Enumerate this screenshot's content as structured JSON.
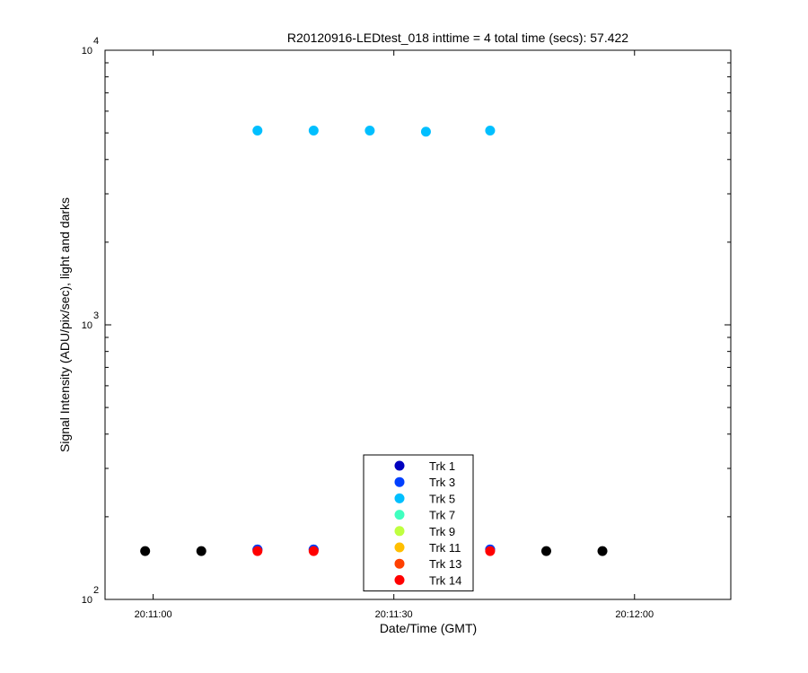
{
  "chart_data": {
    "type": "scatter",
    "title": "R20120916-LEDtest_018 inttime = 4 total time (secs): 57.422",
    "xlabel": "Date/Time (GMT)",
    "ylabel": "Signal Intensity (ADU/pix/sec), light and darks",
    "x_axis": {
      "type": "time",
      "min": "20:10:54",
      "max": "20:12:12",
      "ticks": [
        "20:11:00",
        "20:11:30",
        "20:12:00"
      ]
    },
    "y_axis": {
      "scale": "log",
      "min": 100,
      "max": 10000,
      "ticks": [
        {
          "value": 100,
          "base": "10",
          "exp": "2"
        },
        {
          "value": 1000,
          "base": "10",
          "exp": "3"
        },
        {
          "value": 10000,
          "base": "10",
          "exp": "4"
        }
      ]
    },
    "grid": false,
    "legend": {
      "placement": "bottom-center",
      "entries": [
        {
          "name": "Trk 1",
          "color": "#0000BF"
        },
        {
          "name": "Trk 3",
          "color": "#0040FF"
        },
        {
          "name": "Trk 5",
          "color": "#00BFFF"
        },
        {
          "name": "Trk 7",
          "color": "#40FFBF"
        },
        {
          "name": "Trk 9",
          "color": "#BFFF40"
        },
        {
          "name": "Trk 11",
          "color": "#FFBF00"
        },
        {
          "name": "Trk 13",
          "color": "#FF4000"
        },
        {
          "name": "Trk 14",
          "color": "#FF0000"
        }
      ]
    },
    "series": [
      {
        "name": "Trk 1",
        "color": "#0000BF",
        "x": [
          "20:11:13",
          "20:11:20",
          "20:11:42"
        ],
        "y": [
          152,
          152,
          152
        ]
      },
      {
        "name": "Trk 3",
        "color": "#0040FF",
        "x": [
          "20:11:13",
          "20:11:20",
          "20:11:42"
        ],
        "y": [
          152,
          152,
          152
        ]
      },
      {
        "name": "Trk 5",
        "color": "#00BFFF",
        "x": [
          "20:11:13",
          "20:11:20",
          "20:11:27",
          "20:11:34",
          "20:11:42"
        ],
        "y": [
          5100,
          5100,
          5100,
          5050,
          5100
        ]
      },
      {
        "name": "Trk 7",
        "color": "#40FFBF",
        "x": [],
        "y": []
      },
      {
        "name": "Trk 9",
        "color": "#BFFF40",
        "x": [],
        "y": []
      },
      {
        "name": "Trk 11",
        "color": "#FFBF00",
        "x": [],
        "y": []
      },
      {
        "name": "Trk 13",
        "color": "#FF4000",
        "x": [],
        "y": []
      },
      {
        "name": "Trk 14",
        "color": "#FF0000",
        "x": [
          "20:11:13",
          "20:11:20",
          "20:11:42"
        ],
        "y": [
          150,
          150,
          150
        ]
      },
      {
        "color": "#000000",
        "x": [
          "20:10:59",
          "20:11:06",
          "20:11:49",
          "20:11:56"
        ],
        "y": [
          150,
          150,
          150,
          150
        ]
      }
    ]
  }
}
